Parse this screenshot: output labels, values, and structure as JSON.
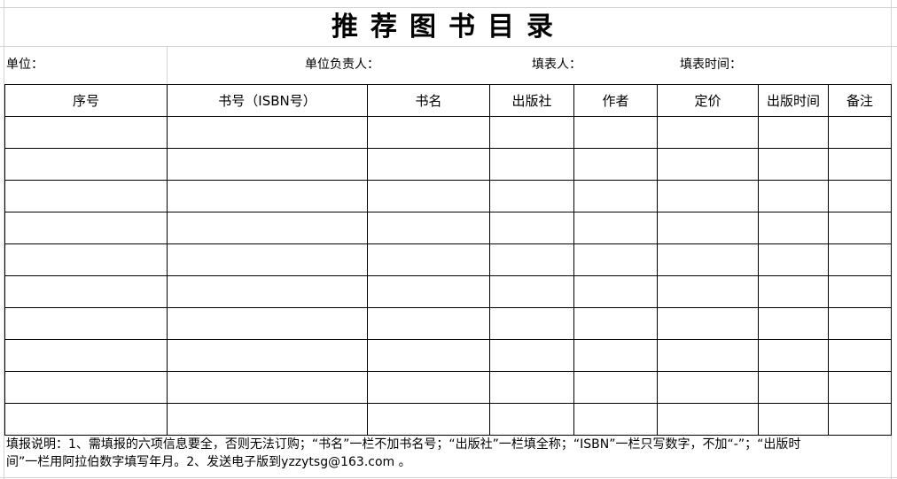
{
  "title": "推荐图书目录",
  "info": {
    "unit_label": "单位：",
    "unit_head_label": "单位负责人：",
    "filler_label": "填表人：",
    "fill_time_label": "填表时间："
  },
  "table": {
    "headers": [
      "序号",
      "书号（ISBN号）",
      "书名",
      "出版社",
      "作者",
      "定价",
      "出版时间",
      "备注"
    ],
    "row_count": 10
  },
  "notes": "填报说明：1、需填报的六项信息要全，否则无法订购；“书名”一栏不加书名号；“出版社”一栏填全称；“ISBN”一栏只写数字，不加“-”；“出版时间”一栏用阿拉伯数字填写年月。2、发送电子版到yzzytsg@163.com 。"
}
